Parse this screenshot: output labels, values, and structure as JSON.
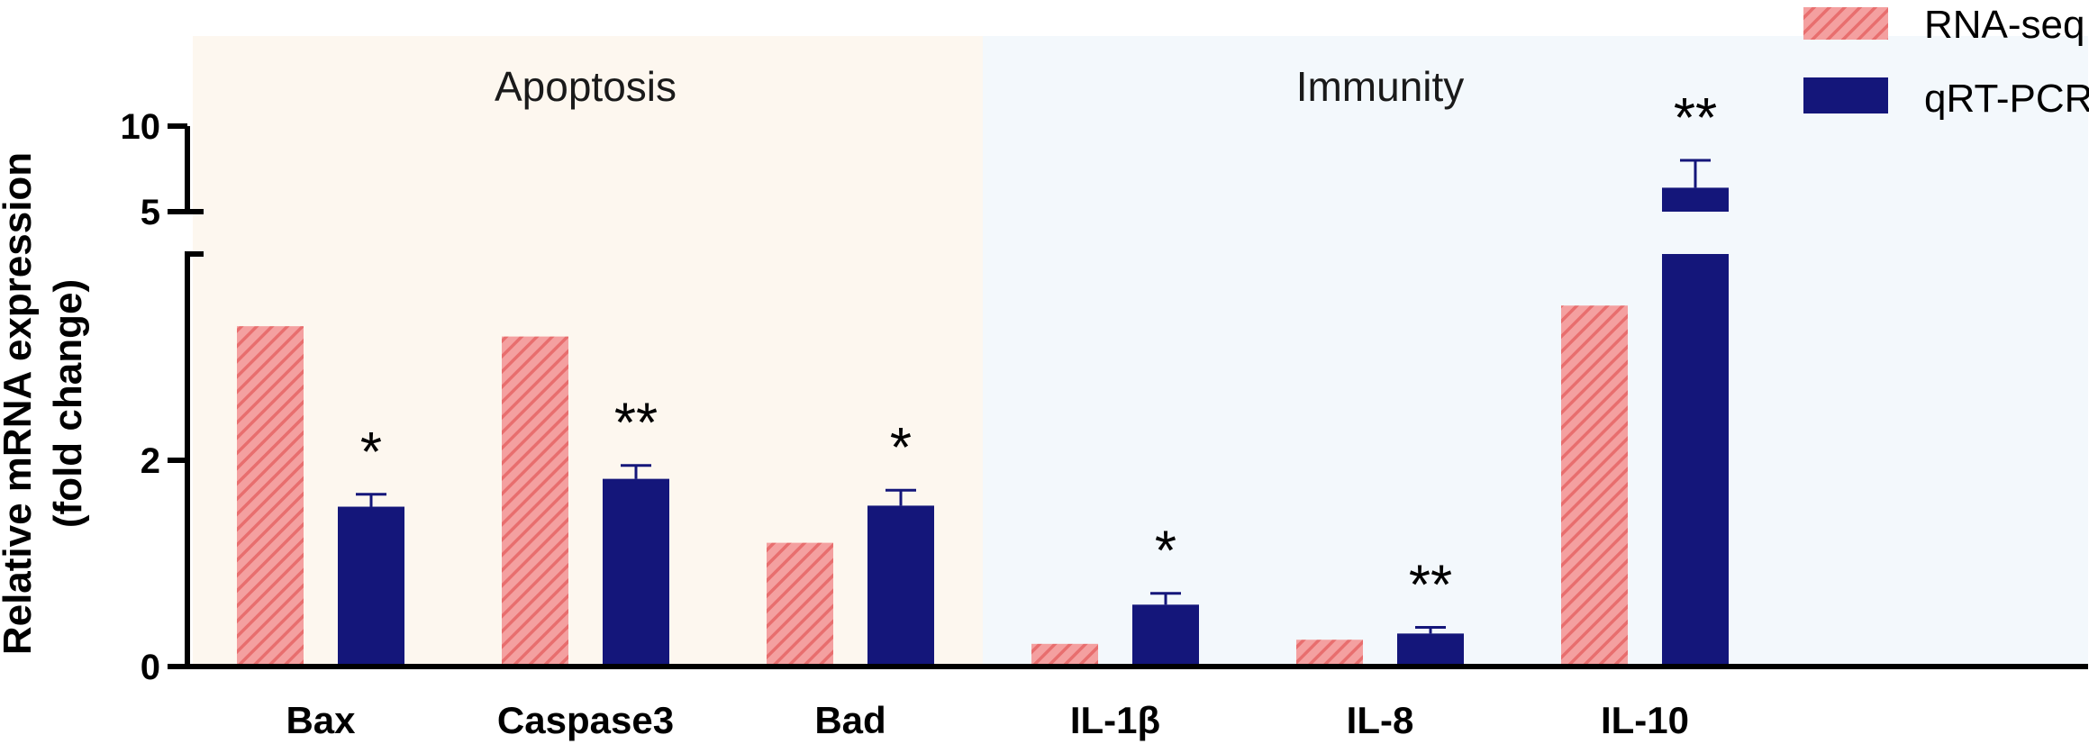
{
  "chart_data": {
    "type": "bar",
    "title": "",
    "xlabel": "",
    "ylabel_lines": [
      "Relative mRNA expression",
      "(fold change)"
    ],
    "categories": [
      "Bax",
      "Caspase3",
      "Bad",
      "IL-1β",
      "IL-8",
      "IL-10"
    ],
    "groups": [
      {
        "name": "Apoptosis",
        "categories": [
          "Bax",
          "Caspase3",
          "Bad"
        ],
        "color": "#fdf7ef"
      },
      {
        "name": "Immunity",
        "categories": [
          "IL-1β",
          "IL-8",
          "IL-10"
        ],
        "color": "#f3f8fc"
      }
    ],
    "series": [
      {
        "name": "RNA-seq",
        "color": "#f08080",
        "pattern": "diagonal-hatch",
        "values": [
          3.3,
          3.2,
          1.2,
          0.22,
          0.26,
          3.5
        ]
      },
      {
        "name": "qRT-PCR",
        "color": "#14167a",
        "values": [
          1.55,
          1.82,
          1.56,
          0.6,
          0.32,
          6.4
        ],
        "errors": [
          0.12,
          0.13,
          0.15,
          0.11,
          0.06,
          1.6
        ]
      }
    ],
    "significance": [
      "*",
      "**",
      "*",
      "*",
      "**",
      "**"
    ],
    "yaxis": {
      "segments": [
        {
          "range": [
            0,
            4
          ],
          "ticks": [
            0,
            2
          ]
        },
        {
          "range": [
            5,
            10
          ],
          "ticks": [
            5,
            10
          ]
        }
      ],
      "tick_labels": [
        "0",
        "2",
        "5",
        "10"
      ],
      "break_between": [
        4,
        5
      ]
    },
    "legend_position": "top-right"
  }
}
